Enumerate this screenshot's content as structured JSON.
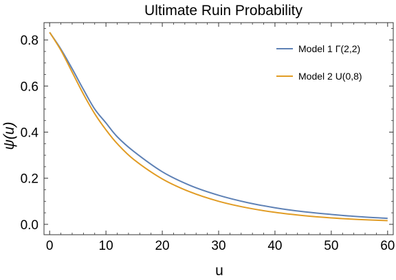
{
  "chart_data": {
    "type": "line",
    "title": "Ultimate Ruin Probability",
    "xlabel": "u",
    "ylabel": "ψ(u)",
    "xlim": [
      -1,
      61
    ],
    "ylim": [
      -0.045,
      0.875
    ],
    "xticks": [
      0,
      10,
      20,
      30,
      40,
      50,
      60
    ],
    "yticks": [
      0.0,
      0.2,
      0.4,
      0.6,
      0.8
    ],
    "xtick_labels": [
      "0",
      "10",
      "20",
      "30",
      "40",
      "50",
      "60"
    ],
    "ytick_labels": [
      "0.0",
      "0.2",
      "0.4",
      "0.6",
      "0.8"
    ],
    "grid": false,
    "legend_position": "top-right",
    "series": [
      {
        "name": "Model 1 Γ(2,2)",
        "color": "#5e81b5",
        "x": [
          0,
          2,
          4,
          6,
          8,
          10,
          12,
          15,
          20,
          25,
          30,
          35,
          40,
          45,
          50,
          55,
          60
        ],
        "y": [
          0.833,
          0.76,
          0.675,
          0.585,
          0.5,
          0.44,
          0.38,
          0.315,
          0.228,
          0.168,
          0.126,
          0.095,
          0.072,
          0.055,
          0.043,
          0.033,
          0.026
        ]
      },
      {
        "name": "Model 2 U(0,8)",
        "color": "#e19c24",
        "x": [
          0,
          2,
          4,
          6,
          8,
          10,
          12,
          15,
          20,
          25,
          30,
          35,
          40,
          45,
          50,
          55,
          60
        ],
        "y": [
          0.833,
          0.755,
          0.66,
          0.565,
          0.48,
          0.41,
          0.35,
          0.28,
          0.197,
          0.14,
          0.1,
          0.072,
          0.052,
          0.038,
          0.028,
          0.021,
          0.016
        ]
      }
    ]
  }
}
